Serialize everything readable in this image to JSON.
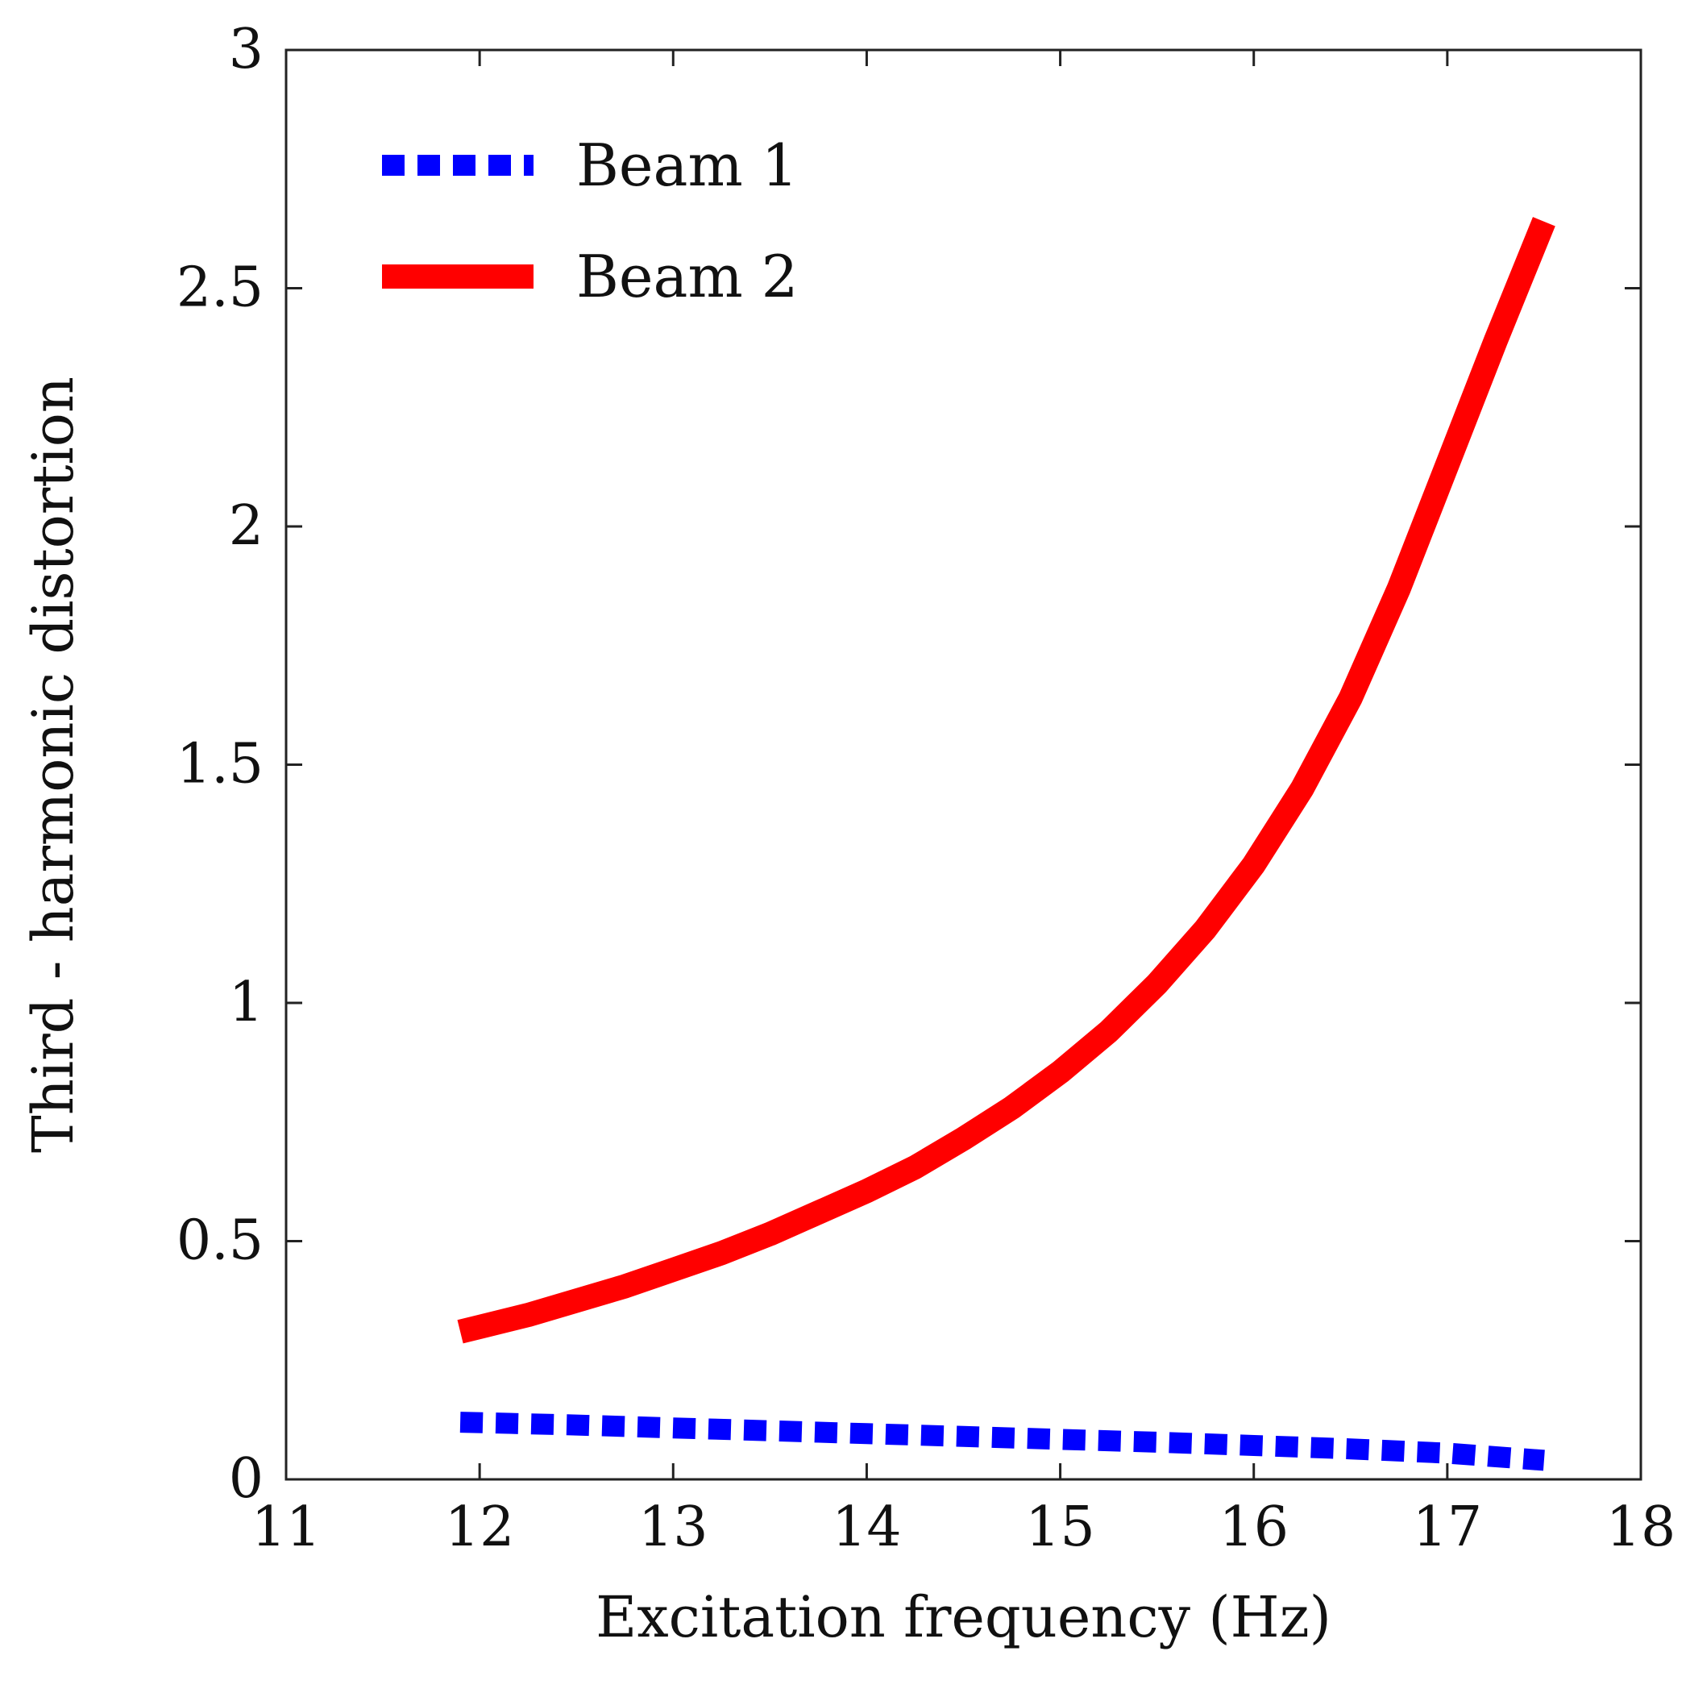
{
  "chart_data": {
    "type": "line",
    "title": "",
    "xlabel": "Excitation frequency  (Hz)",
    "ylabel": "Third - harmonic distortion",
    "xlim": [
      11,
      18
    ],
    "ylim": [
      0,
      3
    ],
    "xticks": [
      11,
      12,
      13,
      14,
      15,
      16,
      17,
      18
    ],
    "yticks": [
      0,
      0.5,
      1,
      1.5,
      2,
      2.5,
      3
    ],
    "xtick_labels": [
      "11",
      "12",
      "13",
      "14",
      "15",
      "16",
      "17",
      "18"
    ],
    "ytick_labels": [
      "0",
      "0.5",
      "1",
      "1.5",
      "2",
      "2.5",
      "3"
    ],
    "grid": false,
    "legend_position": "top-left",
    "series": [
      {
        "name": "Beam 1",
        "color": "#0000ff",
        "style": "dotted",
        "x": [
          11.9,
          12.5,
          13.0,
          13.5,
          14.0,
          14.5,
          15.0,
          15.5,
          16.0,
          16.5,
          17.0,
          17.5
        ],
        "y": [
          0.12,
          0.114,
          0.108,
          0.102,
          0.096,
          0.09,
          0.084,
          0.078,
          0.071,
          0.064,
          0.055,
          0.04
        ]
      },
      {
        "name": "Beam 2",
        "color": "#ff0000",
        "style": "solid",
        "x": [
          11.9,
          12.0,
          12.25,
          12.5,
          12.75,
          13.0,
          13.25,
          13.5,
          13.75,
          14.0,
          14.25,
          14.5,
          14.75,
          15.0,
          15.25,
          15.5,
          15.75,
          16.0,
          16.25,
          16.5,
          16.75,
          17.0,
          17.25,
          17.5
        ],
        "y": [
          0.31,
          0.32,
          0.345,
          0.375,
          0.405,
          0.44,
          0.475,
          0.515,
          0.56,
          0.605,
          0.655,
          0.715,
          0.78,
          0.855,
          0.94,
          1.04,
          1.155,
          1.29,
          1.45,
          1.64,
          1.87,
          2.13,
          2.39,
          2.64
        ]
      }
    ]
  }
}
